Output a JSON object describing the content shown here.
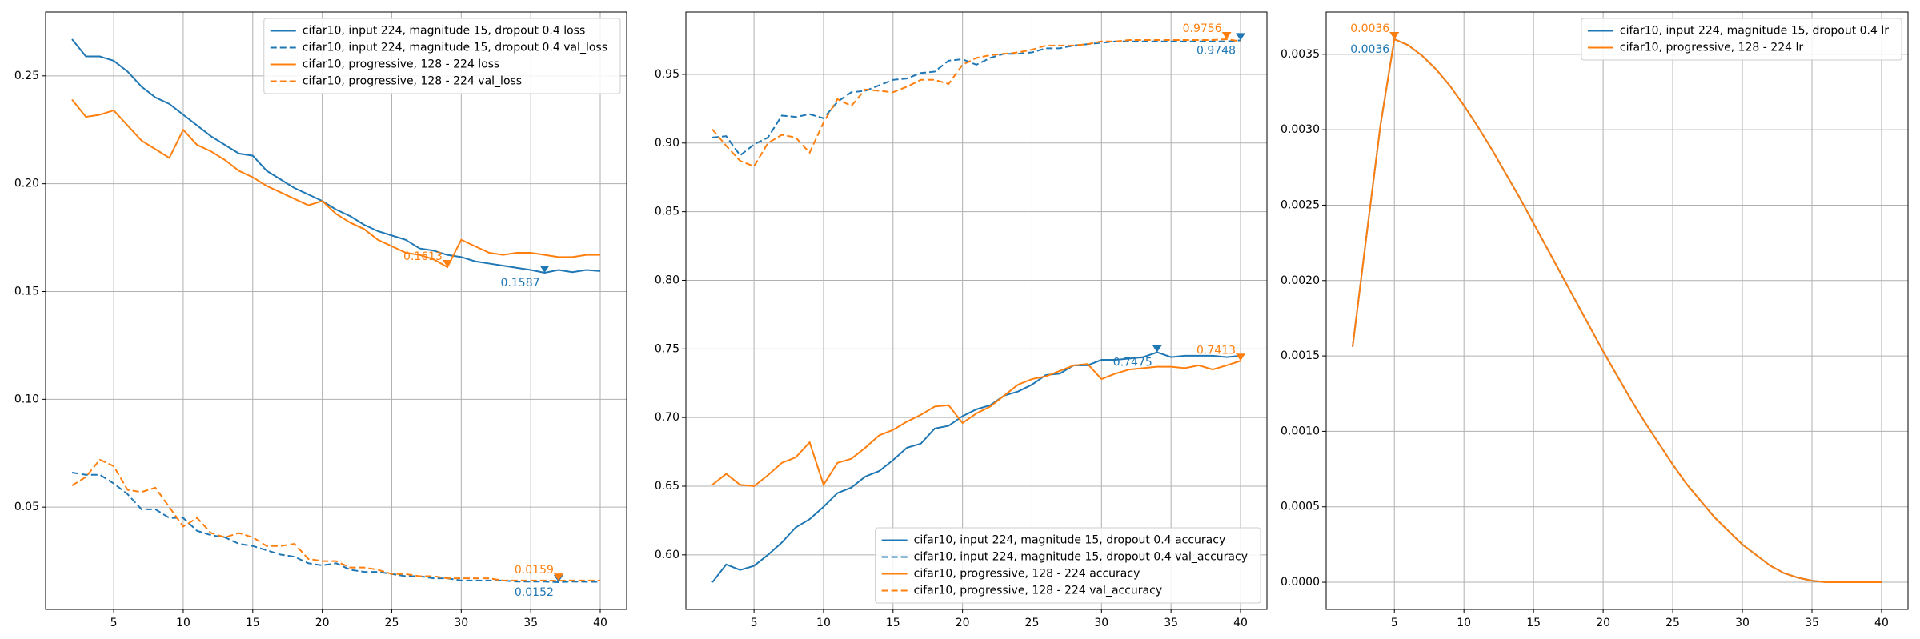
{
  "chart_data": [
    {
      "type": "line",
      "legend": "upper right",
      "grid": true,
      "x": [
        2,
        3,
        4,
        5,
        6,
        7,
        8,
        9,
        10,
        11,
        12,
        13,
        14,
        15,
        16,
        17,
        18,
        19,
        20,
        21,
        22,
        23,
        24,
        25,
        26,
        27,
        28,
        29,
        30,
        31,
        32,
        33,
        34,
        35,
        36,
        37,
        38,
        39,
        40
      ],
      "xlim": [
        0.1,
        41.9
      ],
      "xticks": [
        5,
        10,
        15,
        20,
        25,
        30,
        35,
        40
      ],
      "ylim": [
        0.0026,
        0.2796
      ],
      "yticks": [
        0.05,
        {
          "value": 0.1,
          "label": "0.10"
        },
        0.15,
        {
          "value": 0.2,
          "label": "0.20"
        },
        0.25
      ],
      "series": [
        {
          "name": "cifar10, input 224, magnitude 15, dropout 0.4 loss",
          "color": "#1f77b4",
          "dashed": false,
          "values": [
            0.267,
            0.259,
            0.259,
            0.257,
            0.252,
            0.245,
            0.24,
            0.237,
            0.232,
            0.227,
            0.222,
            0.218,
            0.214,
            0.213,
            0.206,
            0.202,
            0.198,
            0.195,
            0.192,
            0.188,
            0.185,
            0.181,
            0.178,
            0.176,
            0.174,
            0.17,
            0.169,
            0.167,
            0.166,
            0.164,
            0.163,
            0.162,
            0.161,
            0.16,
            0.1587,
            0.16,
            0.159,
            0.16,
            0.1595
          ]
        },
        {
          "name": "cifar10, input 224, magnitude 15, dropout 0.4 val_loss",
          "color": "#1f77b4",
          "dashed": true,
          "values": [
            0.066,
            0.065,
            0.065,
            0.061,
            0.056,
            0.049,
            0.049,
            0.045,
            0.045,
            0.039,
            0.037,
            0.036,
            0.033,
            0.032,
            0.03,
            0.028,
            0.027,
            0.024,
            0.023,
            0.024,
            0.021,
            0.02,
            0.02,
            0.019,
            0.018,
            0.018,
            0.017,
            0.017,
            0.016,
            0.016,
            0.016,
            0.016,
            0.0155,
            0.0155,
            0.0155,
            0.0152,
            0.0155,
            0.0154,
            0.0154
          ]
        },
        {
          "name": "cifar10, progressive, 128 - 224 loss",
          "color": "#ff7f0e",
          "dashed": false,
          "values": [
            0.239,
            0.231,
            0.232,
            0.234,
            0.227,
            0.22,
            0.216,
            0.212,
            0.225,
            0.218,
            0.215,
            0.211,
            0.206,
            0.203,
            0.199,
            0.196,
            0.193,
            0.19,
            0.192,
            0.186,
            0.182,
            0.179,
            0.174,
            0.171,
            0.168,
            0.167,
            0.165,
            0.1613,
            0.174,
            0.171,
            0.168,
            0.167,
            0.168,
            0.168,
            0.167,
            0.166,
            0.166,
            0.167,
            0.167
          ]
        },
        {
          "name": "cifar10, progressive, 128 - 224 val_loss",
          "color": "#ff7f0e",
          "dashed": true,
          "values": [
            0.06,
            0.064,
            0.072,
            0.069,
            0.058,
            0.057,
            0.059,
            0.05,
            0.041,
            0.045,
            0.038,
            0.036,
            0.038,
            0.036,
            0.032,
            0.032,
            0.033,
            0.026,
            0.025,
            0.025,
            0.022,
            0.022,
            0.021,
            0.019,
            0.019,
            0.018,
            0.018,
            0.017,
            0.017,
            0.017,
            0.017,
            0.016,
            0.016,
            0.016,
            0.016,
            0.0159,
            0.016,
            0.016,
            0.016
          ]
        }
      ],
      "annotations": [
        {
          "text": "0.1587",
          "x": 36,
          "y": 0.1587,
          "color": "#1f77b4"
        },
        {
          "text": "0.0152",
          "x": 37,
          "y": 0.0152,
          "color": "#1f77b4"
        },
        {
          "text": "0.1613",
          "x": 29,
          "y": 0.1613,
          "color": "#ff7f0e"
        },
        {
          "text": "0.0159",
          "x": 37,
          "y": 0.0159,
          "color": "#ff7f0e"
        }
      ]
    },
    {
      "type": "line",
      "legend": "lower right",
      "grid": true,
      "x": [
        2,
        3,
        4,
        5,
        6,
        7,
        8,
        9,
        10,
        11,
        12,
        13,
        14,
        15,
        16,
        17,
        18,
        19,
        20,
        21,
        22,
        23,
        24,
        25,
        26,
        27,
        28,
        29,
        30,
        31,
        32,
        33,
        34,
        35,
        36,
        37,
        38,
        39,
        40
      ],
      "xlim": [
        0.1,
        41.9
      ],
      "xticks": [
        5,
        10,
        15,
        20,
        25,
        30,
        35,
        40
      ],
      "ylim": [
        0.5603,
        0.9954
      ],
      "yticks": [
        {
          "value": 0.6,
          "label": "0.60"
        },
        0.65,
        {
          "value": 0.7,
          "label": "0.70"
        },
        0.75,
        {
          "value": 0.8,
          "label": "0.80"
        },
        0.85,
        {
          "value": 0.9,
          "label": "0.90"
        },
        0.95
      ],
      "series": [
        {
          "name": "cifar10, input 224, magnitude 15, dropout 0.4 accuracy",
          "color": "#1f77b4",
          "dashed": false,
          "values": [
            0.58,
            0.593,
            0.589,
            0.592,
            0.6,
            0.609,
            0.62,
            0.626,
            0.635,
            0.645,
            0.649,
            0.657,
            0.661,
            0.669,
            0.678,
            0.681,
            0.692,
            0.694,
            0.701,
            0.706,
            0.709,
            0.716,
            0.719,
            0.724,
            0.731,
            0.732,
            0.738,
            0.738,
            0.742,
            0.742,
            0.743,
            0.744,
            0.7475,
            0.744,
            0.745,
            0.745,
            0.745,
            0.744,
            0.745
          ]
        },
        {
          "name": "cifar10, input 224, magnitude 15, dropout 0.4 val_accuracy",
          "color": "#1f77b4",
          "dashed": true,
          "values": [
            0.904,
            0.905,
            0.891,
            0.899,
            0.904,
            0.92,
            0.919,
            0.921,
            0.918,
            0.93,
            0.937,
            0.938,
            0.942,
            0.946,
            0.947,
            0.951,
            0.952,
            0.96,
            0.961,
            0.957,
            0.962,
            0.965,
            0.965,
            0.966,
            0.969,
            0.969,
            0.971,
            0.972,
            0.973,
            0.974,
            0.974,
            0.974,
            0.974,
            0.974,
            0.974,
            0.974,
            0.974,
            0.974,
            0.9748
          ]
        },
        {
          "name": "cifar10, progressive, 128 - 224 accuracy",
          "color": "#ff7f0e",
          "dashed": false,
          "values": [
            0.651,
            0.659,
            0.651,
            0.65,
            0.658,
            0.667,
            0.671,
            0.682,
            0.651,
            0.667,
            0.67,
            0.678,
            0.687,
            0.691,
            0.697,
            0.702,
            0.708,
            0.709,
            0.696,
            0.703,
            0.708,
            0.716,
            0.724,
            0.728,
            0.73,
            0.734,
            0.738,
            0.739,
            0.728,
            0.732,
            0.735,
            0.736,
            0.737,
            0.737,
            0.736,
            0.738,
            0.735,
            0.738,
            0.7413
          ]
        },
        {
          "name": "cifar10, progressive, 128 - 224 val_accuracy",
          "color": "#ff7f0e",
          "dashed": true,
          "values": [
            0.91,
            0.898,
            0.887,
            0.883,
            0.9,
            0.906,
            0.904,
            0.893,
            0.915,
            0.932,
            0.927,
            0.939,
            0.938,
            0.937,
            0.941,
            0.946,
            0.946,
            0.943,
            0.957,
            0.962,
            0.964,
            0.965,
            0.966,
            0.968,
            0.971,
            0.971,
            0.971,
            0.972,
            0.974,
            0.974,
            0.975,
            0.975,
            0.975,
            0.975,
            0.975,
            0.975,
            0.975,
            0.9756,
            0.974
          ]
        }
      ],
      "annotations": [
        {
          "text": "0.7475",
          "x": 34,
          "y": 0.7475,
          "color": "#1f77b4"
        },
        {
          "text": "0.9748",
          "x": 40,
          "y": 0.9748,
          "color": "#1f77b4"
        },
        {
          "text": "0.7413",
          "x": 40,
          "y": 0.7413,
          "color": "#ff7f0e"
        },
        {
          "text": "0.9756",
          "x": 39,
          "y": 0.9756,
          "color": "#ff7f0e"
        }
      ]
    },
    {
      "type": "line",
      "legend": "upper right",
      "grid": true,
      "x": [
        2,
        3,
        4,
        5,
        6,
        7,
        8,
        9,
        10,
        11,
        12,
        13,
        14,
        15,
        16,
        17,
        18,
        19,
        20,
        21,
        22,
        23,
        24,
        25,
        26,
        27,
        28,
        29,
        30,
        31,
        32,
        33,
        34,
        35,
        36,
        37,
        38,
        39,
        40
      ],
      "xlim": [
        0.1,
        41.9
      ],
      "xticks": [
        5,
        10,
        15,
        20,
        25,
        30,
        35,
        40
      ],
      "ylim": [
        -0.00018,
        0.00378
      ],
      "yticks": [
        {
          "value": 0,
          "label": "0.0000"
        },
        0.0005,
        {
          "value": 0.001,
          "label": "0.0010"
        },
        0.0015,
        {
          "value": 0.002,
          "label": "0.0020"
        },
        0.0025,
        {
          "value": 0.003,
          "label": "0.0030"
        },
        0.0035
      ],
      "series": [
        {
          "name": "cifar10, input 224, magnitude 15, dropout 0.4 lr",
          "color": "#1f77b4",
          "dashed": false,
          "values": [
            0.00156,
            0.0023,
            0.00303,
            0.0036,
            0.00356,
            0.00349,
            0.0034,
            0.00329,
            0.00316,
            0.00302,
            0.00287,
            0.00271,
            0.00255,
            0.00238,
            0.00221,
            0.00204,
            0.00187,
            0.0017,
            0.00153,
            0.00137,
            0.00121,
            0.00106,
            0.00092,
            0.00078,
            0.00065,
            0.00054,
            0.00043,
            0.00034,
            0.00025,
            0.00018,
            0.00011,
            6e-05,
            3e-05,
            1e-05,
            0,
            0,
            0,
            0,
            0
          ]
        },
        {
          "name": "cifar10, progressive, 128 - 224 lr",
          "color": "#ff7f0e",
          "dashed": false,
          "values": [
            0.00156,
            0.0023,
            0.00303,
            0.0036,
            0.00356,
            0.00349,
            0.0034,
            0.00329,
            0.00316,
            0.00302,
            0.00287,
            0.00271,
            0.00255,
            0.00238,
            0.00221,
            0.00204,
            0.00187,
            0.0017,
            0.00153,
            0.00137,
            0.00121,
            0.00106,
            0.00092,
            0.00078,
            0.00065,
            0.00054,
            0.00043,
            0.00034,
            0.00025,
            0.00018,
            0.00011,
            6e-05,
            3e-05,
            1e-05,
            0,
            0,
            0,
            0,
            0
          ]
        }
      ],
      "annotations": [
        {
          "text": "0.0036",
          "x": 5,
          "y": 0.0036,
          "color": "#1f77b4"
        },
        {
          "text": "0.0036",
          "x": 5,
          "y": 0.0036,
          "color": "#ff7f0e"
        }
      ]
    }
  ]
}
